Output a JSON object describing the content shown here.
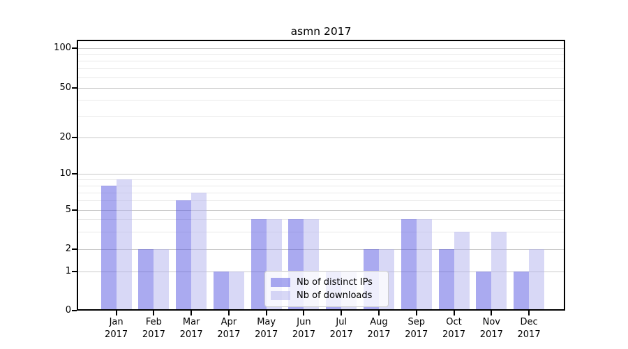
{
  "title": "asmn 2017",
  "x_axis": {
    "months": [
      "Jan",
      "Feb",
      "Mar",
      "Apr",
      "May",
      "Jun",
      "Jul",
      "Aug",
      "Sep",
      "Oct",
      "Nov",
      "Dec"
    ],
    "year": "2017"
  },
  "chart_data": {
    "type": "bar",
    "title": "asmn 2017",
    "categories": [
      "Jan 2017",
      "Feb 2017",
      "Mar 2017",
      "Apr 2017",
      "May 2017",
      "Jun 2017",
      "Jul 2017",
      "Aug 2017",
      "Sep 2017",
      "Oct 2017",
      "Nov 2017",
      "Dec 2017"
    ],
    "series": [
      {
        "name": "Nb of distinct IPs",
        "color": "rgba(85,85,225,0.5)",
        "solid_color": "#aaaaf0",
        "values": [
          8,
          2,
          6,
          1,
          4,
          4,
          1,
          2,
          4,
          2,
          1,
          1
        ]
      },
      {
        "name": "Nb of downloads",
        "color": "rgba(177,177,237,0.5)",
        "solid_color": "#d8d8f6",
        "values": [
          9,
          2,
          7,
          1,
          4,
          4,
          1,
          2,
          4,
          3,
          3,
          2
        ]
      }
    ],
    "xlabel": "",
    "ylabel": "",
    "ylim": [
      0,
      100
    ],
    "y_scale": "symlog",
    "y_axis": {
      "ticks": [
        0,
        1,
        2,
        5,
        10,
        20,
        50,
        100
      ],
      "minor_gridlines": [
        3,
        4,
        6,
        7,
        8,
        9,
        30,
        40,
        60,
        70,
        80,
        90
      ]
    },
    "grid": true,
    "legend_position": "lower center"
  }
}
